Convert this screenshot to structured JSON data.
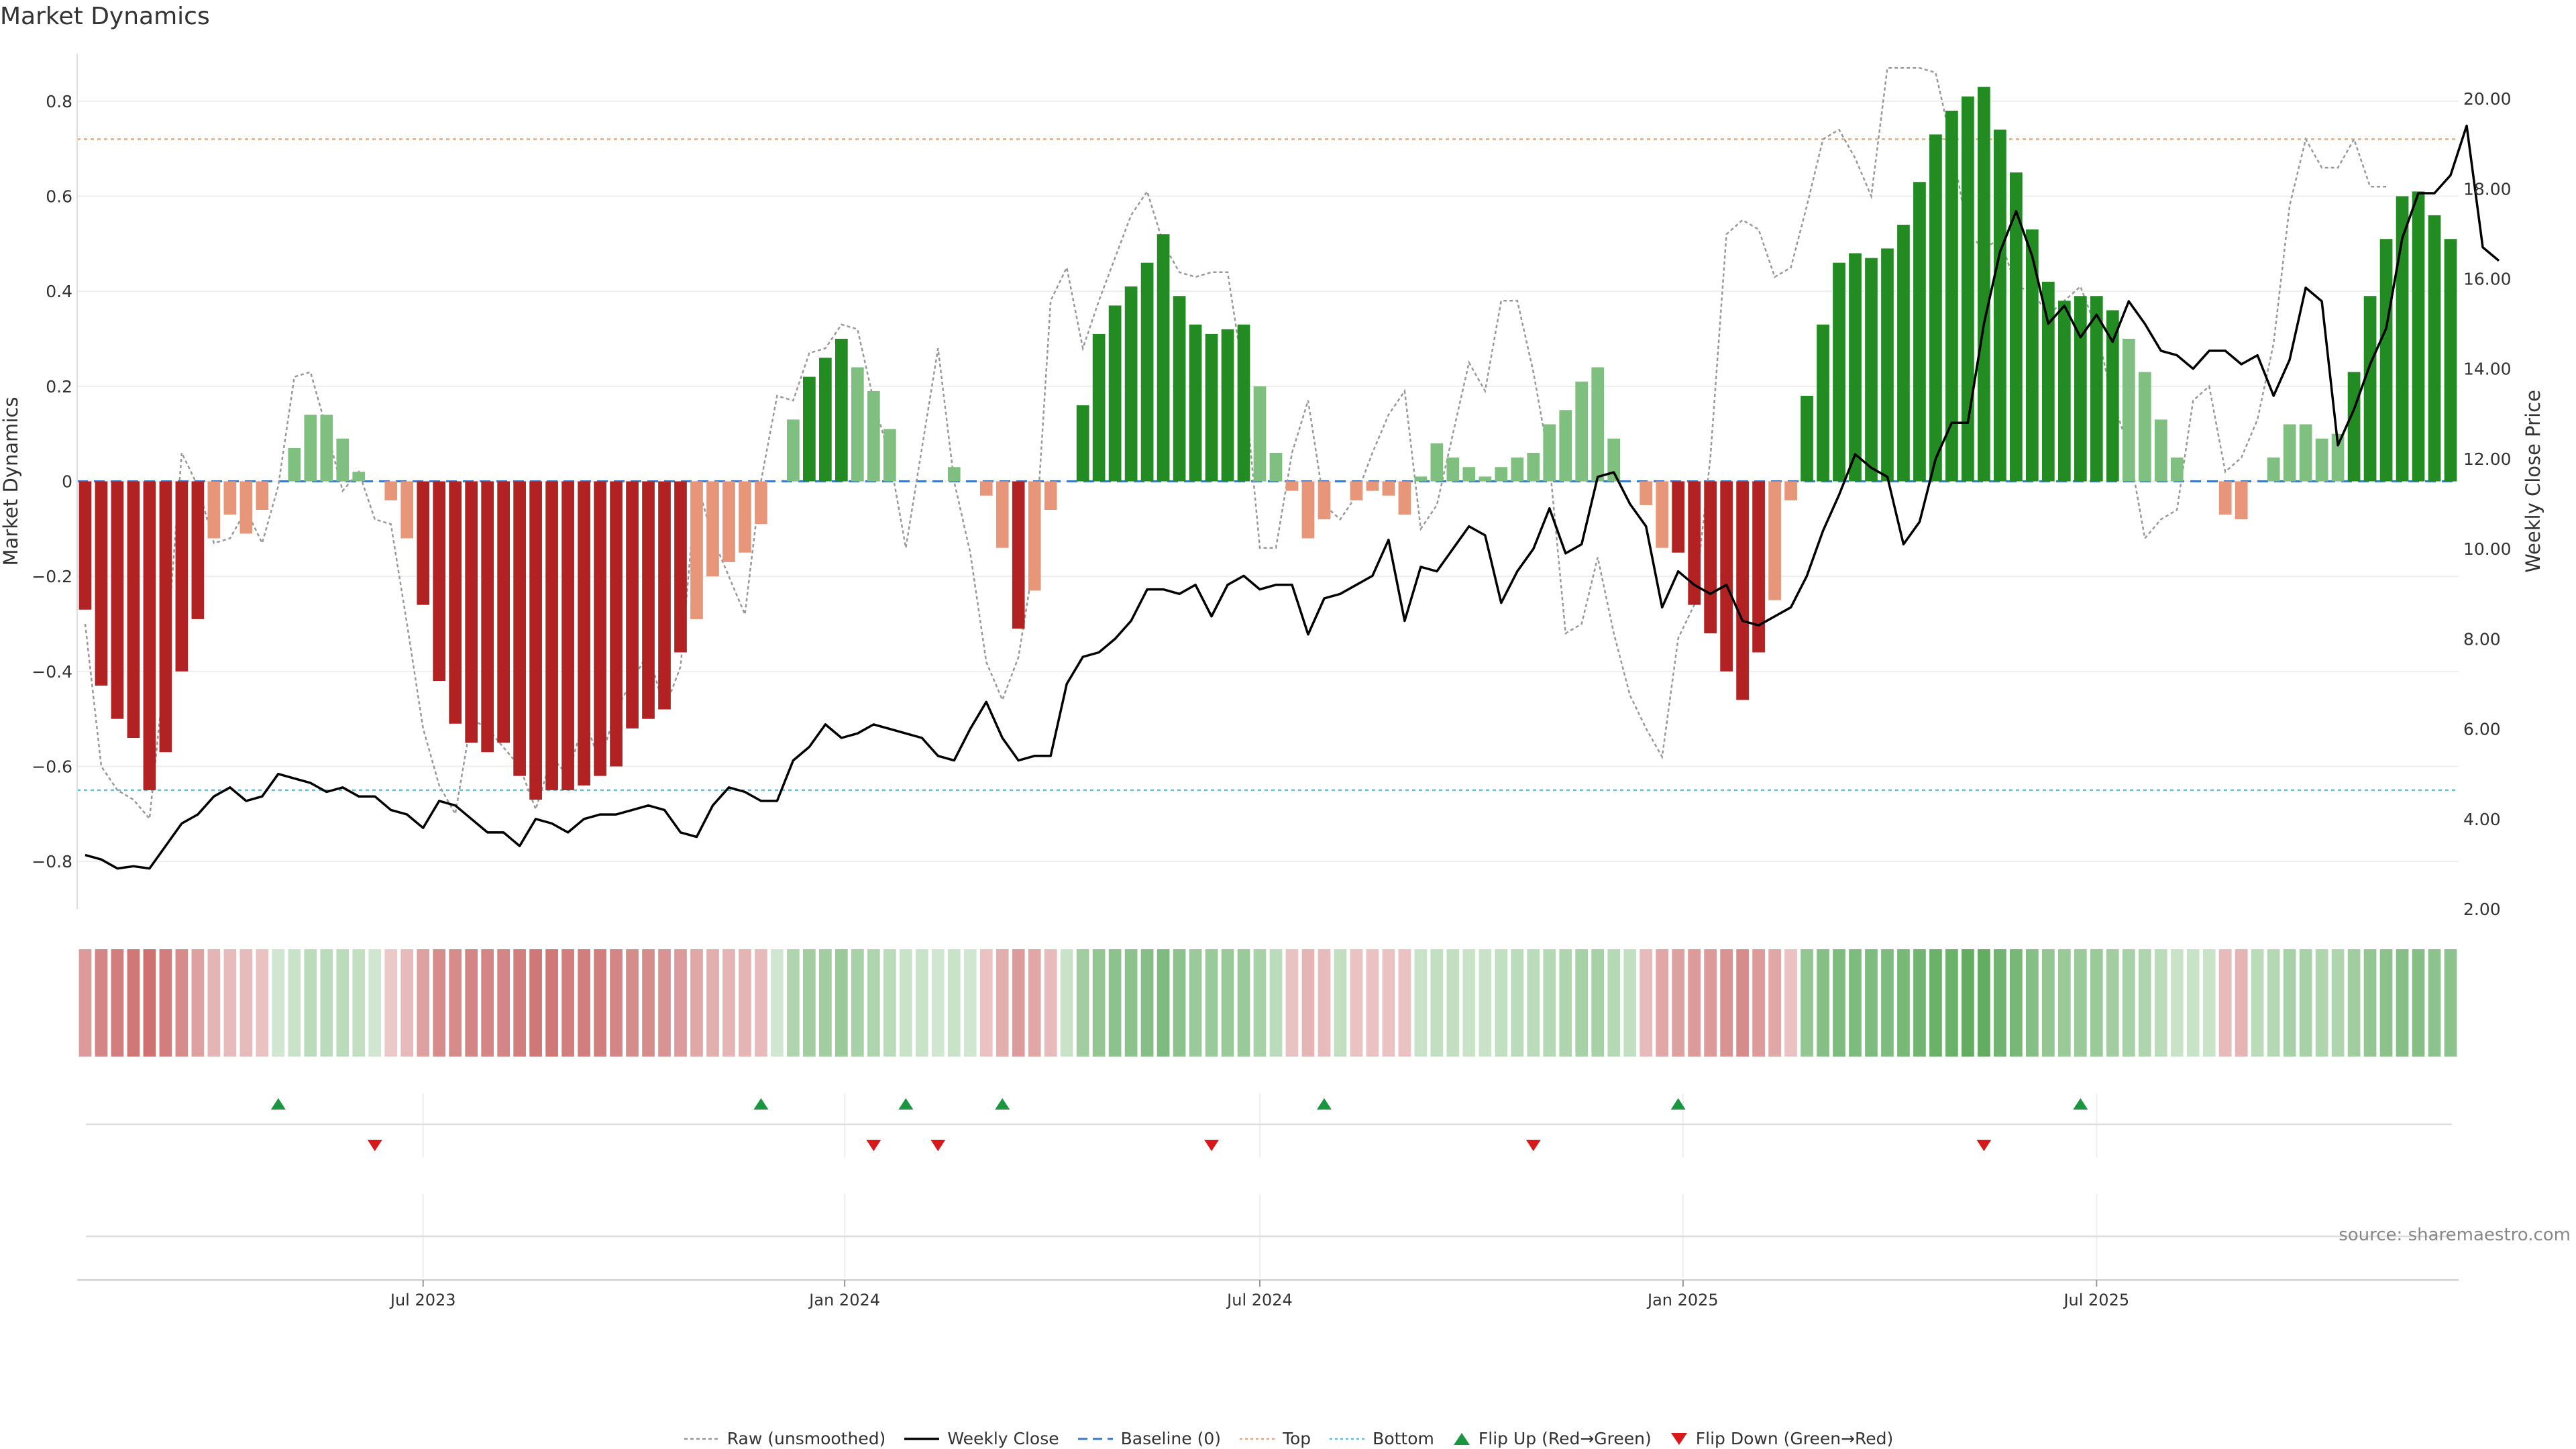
{
  "title": "Market Dynamics",
  "source": "source: sharemaestro.com",
  "legend": [
    {
      "key": "raw",
      "label": "Raw (unsmoothed)"
    },
    {
      "key": "close",
      "label": "Weekly Close"
    },
    {
      "key": "baseline",
      "label": "Baseline (0)"
    },
    {
      "key": "top",
      "label": "Top"
    },
    {
      "key": "bottom",
      "label": "Bottom"
    },
    {
      "key": "flip_up",
      "label": "Flip Up (Red→Green)"
    },
    {
      "key": "flip_down",
      "label": "Flip Down (Green→Red)"
    }
  ],
  "chart_data": {
    "type": "bar",
    "title": "Market Dynamics",
    "ylabel": "Market Dynamics",
    "y2label": "Weekly Close Price",
    "ylim": [
      -0.9,
      0.9
    ],
    "y2lim": [
      2.0,
      21.0
    ],
    "yticks": [
      "−0.8",
      "−0.6",
      "−0.4",
      "−0.2",
      "0",
      "0.2",
      "0.4",
      "0.6",
      "0.8"
    ],
    "yticks_values": [
      -0.8,
      -0.6,
      -0.4,
      -0.2,
      0,
      0.2,
      0.4,
      0.6,
      0.8
    ],
    "y2ticks": [
      "2.00",
      "4.00",
      "6.00",
      "8.00",
      "10.00",
      "12.00",
      "14.00",
      "16.00",
      "18.00",
      "20.00"
    ],
    "y2ticks_values": [
      2,
      4,
      6,
      8,
      10,
      12,
      14,
      16,
      18,
      20
    ],
    "xticks": [
      {
        "label": "Jul 2023",
        "week": 21.5
      },
      {
        "label": "Jan 2024",
        "week": 47.7
      },
      {
        "label": "Jul 2024",
        "week": 73.5
      },
      {
        "label": "Jan 2025",
        "week": 99.8
      },
      {
        "label": "Jul 2025",
        "week": 125.5
      }
    ],
    "top_level": 0.72,
    "bottom_level": -0.65,
    "baseline": 0,
    "grid": true,
    "legend_position": "bottom-center",
    "bar_colors": {
      "strong_neg": "#b22222",
      "weak_neg": "#e8967a",
      "strong_pos": "#228b22",
      "weak_pos": "#7fbf7f"
    },
    "line_colors": {
      "close": "#000000",
      "raw": "#999999",
      "baseline": "#3a78c9",
      "top": "#e8a87c",
      "bottom": "#5bc0de",
      "flip_up": "#1a9641",
      "flip_down": "#d7191c"
    },
    "momentum": [
      -0.27,
      -0.43,
      -0.5,
      -0.54,
      -0.65,
      -0.57,
      -0.4,
      -0.29,
      -0.12,
      -0.07,
      -0.11,
      -0.06,
      0.0,
      0.07,
      0.14,
      0.14,
      0.09,
      0.02,
      0.0,
      -0.04,
      -0.12,
      -0.26,
      -0.42,
      -0.51,
      -0.55,
      -0.57,
      -0.55,
      -0.62,
      -0.67,
      -0.65,
      -0.65,
      -0.64,
      -0.62,
      -0.6,
      -0.52,
      -0.5,
      -0.48,
      -0.36,
      -0.29,
      -0.2,
      -0.17,
      -0.15,
      -0.09,
      0.0,
      0.13,
      0.22,
      0.26,
      0.3,
      0.24,
      0.19,
      0.11,
      0.0,
      0.0,
      0.0,
      0.03,
      0.0,
      -0.03,
      -0.14,
      -0.31,
      -0.23,
      -0.06,
      0.0,
      0.16,
      0.31,
      0.37,
      0.41,
      0.46,
      0.52,
      0.39,
      0.33,
      0.31,
      0.32,
      0.33,
      0.2,
      0.06,
      -0.02,
      -0.12,
      -0.08,
      0.0,
      -0.04,
      -0.02,
      -0.03,
      -0.07,
      0.01,
      0.08,
      0.05,
      0.03,
      0.01,
      0.03,
      0.05,
      0.06,
      0.12,
      0.15,
      0.21,
      0.24,
      0.09,
      0.0,
      -0.05,
      -0.14,
      -0.15,
      -0.26,
      -0.32,
      -0.4,
      -0.46,
      -0.36,
      -0.25,
      -0.04,
      0.18,
      0.33,
      0.46,
      0.48,
      0.47,
      0.49,
      0.54,
      0.63,
      0.73,
      0.78,
      0.81,
      0.83,
      0.74,
      0.65,
      0.53,
      0.42,
      0.38,
      0.39,
      0.39,
      0.36,
      0.3,
      0.23,
      0.13,
      0.05,
      0.0,
      0.0,
      -0.07,
      -0.08,
      0.0,
      0.05,
      0.12,
      0.12,
      0.09,
      0.1,
      0.23,
      0.39,
      0.51,
      0.6,
      0.61,
      0.56,
      0.51
    ],
    "intensity": [
      0.45,
      0.6,
      0.65,
      0.7,
      0.75,
      0.65,
      0.55,
      0.4,
      0.25,
      0.2,
      0.2,
      0.15,
      0.05,
      0.1,
      0.2,
      0.2,
      0.2,
      0.15,
      0.05,
      0.1,
      0.2,
      0.4,
      0.55,
      0.55,
      0.6,
      0.6,
      0.6,
      0.65,
      0.7,
      0.7,
      0.65,
      0.65,
      0.65,
      0.6,
      0.55,
      0.55,
      0.5,
      0.45,
      0.35,
      0.3,
      0.25,
      0.25,
      0.2,
      0.05,
      0.3,
      0.4,
      0.4,
      0.45,
      0.35,
      0.3,
      0.2,
      0.1,
      0.1,
      0.05,
      0.1,
      0.05,
      0.15,
      0.3,
      0.45,
      0.35,
      0.2,
      0.1,
      0.4,
      0.5,
      0.55,
      0.55,
      0.6,
      0.65,
      0.55,
      0.45,
      0.45,
      0.45,
      0.45,
      0.35,
      0.2,
      0.15,
      0.25,
      0.2,
      0.15,
      0.15,
      0.15,
      0.15,
      0.15,
      0.1,
      0.15,
      0.15,
      0.1,
      0.1,
      0.15,
      0.2,
      0.2,
      0.25,
      0.3,
      0.35,
      0.35,
      0.25,
      0.15,
      0.2,
      0.35,
      0.4,
      0.45,
      0.45,
      0.5,
      0.55,
      0.45,
      0.35,
      0.15,
      0.5,
      0.6,
      0.65,
      0.65,
      0.65,
      0.65,
      0.7,
      0.75,
      0.8,
      0.8,
      0.85,
      0.85,
      0.75,
      0.7,
      0.6,
      0.5,
      0.45,
      0.45,
      0.45,
      0.4,
      0.35,
      0.3,
      0.2,
      0.1,
      0.1,
      0.1,
      0.2,
      0.25,
      0.2,
      0.25,
      0.35,
      0.35,
      0.3,
      0.3,
      0.4,
      0.5,
      0.55,
      0.6,
      0.6,
      0.55,
      0.55
    ],
    "raw": [
      -0.3,
      -0.6,
      -0.65,
      -0.67,
      -0.71,
      -0.38,
      0.06,
      -0.01,
      -0.13,
      -0.12,
      -0.06,
      -0.13,
      -0.01,
      0.22,
      0.23,
      0.11,
      -0.02,
      0.02,
      -0.08,
      -0.09,
      -0.3,
      -0.52,
      -0.64,
      -0.7,
      -0.5,
      -0.52,
      -0.56,
      -0.6,
      -0.69,
      -0.58,
      -0.62,
      -0.5,
      -0.59,
      -0.48,
      -0.42,
      -0.36,
      -0.48,
      -0.39,
      0.0,
      -0.12,
      -0.2,
      -0.28,
      0.0,
      0.18,
      0.17,
      0.27,
      0.28,
      0.33,
      0.32,
      0.17,
      0.05,
      -0.14,
      0.07,
      0.28,
      0.0,
      -0.15,
      -0.38,
      -0.46,
      -0.37,
      -0.16,
      0.38,
      0.45,
      0.28,
      0.38,
      0.47,
      0.56,
      0.61,
      0.5,
      0.44,
      0.43,
      0.44,
      0.44,
      0.22,
      -0.14,
      -0.14,
      0.06,
      0.17,
      -0.05,
      -0.08,
      -0.03,
      0.06,
      0.14,
      0.19,
      -0.1,
      -0.05,
      0.1,
      0.25,
      0.19,
      0.38,
      0.38,
      0.23,
      0.04,
      -0.32,
      -0.3,
      -0.16,
      -0.32,
      -0.45,
      -0.52,
      -0.58,
      -0.33,
      -0.26,
      0.05,
      0.52,
      0.55,
      0.53,
      0.43,
      0.45,
      0.58,
      0.72,
      0.74,
      0.68,
      0.6,
      0.87,
      0.87,
      0.87,
      0.86,
      0.71,
      0.52,
      0.49,
      0.51,
      0.41,
      0.4,
      0.35,
      0.38,
      0.41,
      0.32,
      0.17,
      0.07,
      -0.12,
      -0.08,
      -0.06,
      0.17,
      0.2,
      0.02,
      0.05,
      0.13,
      0.29,
      0.58,
      0.72,
      0.66,
      0.66,
      0.72,
      0.62,
      0.62
    ],
    "close": [
      3.2,
      3.1,
      2.9,
      2.95,
      2.9,
      3.4,
      3.9,
      4.1,
      4.5,
      4.7,
      4.4,
      4.5,
      5.0,
      4.9,
      4.8,
      4.6,
      4.7,
      4.5,
      4.5,
      4.2,
      4.1,
      3.8,
      4.4,
      4.3,
      4.0,
      3.7,
      3.7,
      3.4,
      4.0,
      3.9,
      3.7,
      4.0,
      4.1,
      4.1,
      4.2,
      4.3,
      4.2,
      3.7,
      3.6,
      4.3,
      4.7,
      4.6,
      4.4,
      4.4,
      5.3,
      5.6,
      6.1,
      5.8,
      5.9,
      6.1,
      6.0,
      5.9,
      5.8,
      5.4,
      5.3,
      6.0,
      6.6,
      5.8,
      5.3,
      5.4,
      5.4,
      7.0,
      7.6,
      7.7,
      8.0,
      8.4,
      9.1,
      9.1,
      9.0,
      9.2,
      8.5,
      9.2,
      9.4,
      9.1,
      9.2,
      9.2,
      8.1,
      8.9,
      9.0,
      9.2,
      9.4,
      10.2,
      8.4,
      9.6,
      9.5,
      10.0,
      10.5,
      10.3,
      8.8,
      9.5,
      10.0,
      10.9,
      9.9,
      10.1,
      11.6,
      11.7,
      11.0,
      10.5,
      8.7,
      9.5,
      9.2,
      9.0,
      9.2,
      8.4,
      8.3,
      8.5,
      8.7,
      9.4,
      10.4,
      11.2,
      12.1,
      11.8,
      11.6,
      10.1,
      10.6,
      12.0,
      12.8,
      12.8,
      15.0,
      16.6,
      17.5,
      16.5,
      15.0,
      15.4,
      14.7,
      15.2,
      14.6,
      15.5,
      15.0,
      14.4,
      14.3,
      14.0,
      14.4,
      14.4,
      14.1,
      14.3,
      13.4,
      14.2,
      15.8,
      15.5,
      12.3,
      13.1,
      14.1,
      14.9,
      16.9,
      17.9,
      17.9,
      18.3,
      19.4,
      16.7,
      16.4
    ],
    "flip_up_weeks": [
      12,
      42,
      51,
      57,
      77,
      99,
      124
    ],
    "flip_down_weeks": [
      18,
      49,
      53,
      70,
      90,
      118
    ]
  }
}
